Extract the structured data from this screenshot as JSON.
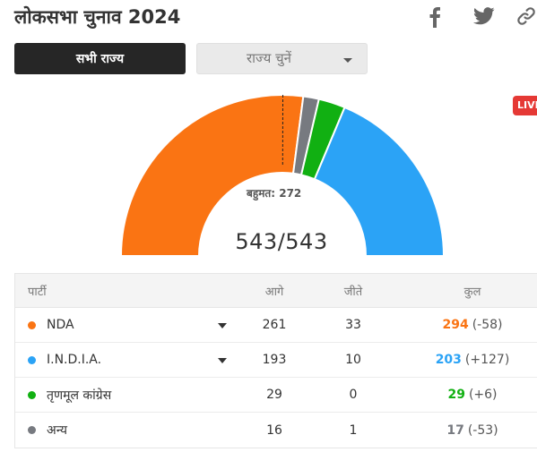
{
  "header": {
    "title": "लोकसभा चुनाव 2024",
    "share_icons": [
      "facebook-icon",
      "twitter-icon",
      "link-icon"
    ]
  },
  "controls": {
    "all_states_label": "सभी राज्य",
    "state_select_placeholder": "राज्य चुनें"
  },
  "live_badge": "LIVE",
  "summary": {
    "majority_label": "बहुमत: 272",
    "seats_declared": "543/543"
  },
  "colors": {
    "nda": "#fa7413",
    "india": "#2ba3f6",
    "tmc": "#11b012",
    "others": "#777a80"
  },
  "chart_data": {
    "type": "semi-donut",
    "total_seats": 543,
    "majority": 272,
    "segments": [
      {
        "name": "NDA",
        "value": 294,
        "color": "#fa7413"
      },
      {
        "name": "अन्य",
        "value": 17,
        "color": "#777a80"
      },
      {
        "name": "तृणमूल कांग्रेस",
        "value": 29,
        "color": "#11b012"
      },
      {
        "name": "I.N.D.I.A.",
        "value": 203,
        "color": "#2ba3f6"
      }
    ]
  },
  "table": {
    "headers": {
      "party": "पार्टी",
      "lead": "आगे",
      "won": "जीते",
      "total": "कुल"
    },
    "rows": [
      {
        "party": "NDA",
        "color": "#fa7413",
        "lead": "261",
        "won": "33",
        "total": "294",
        "change": "(-58)",
        "total_color": "#fa7413",
        "expandable": true
      },
      {
        "party": "I.N.D.I.A.",
        "color": "#2ba3f6",
        "lead": "193",
        "won": "10",
        "total": "203",
        "change": "(+127)",
        "total_color": "#2ba3f6",
        "expandable": true
      },
      {
        "party": "तृणमूल कांग्रेस",
        "color": "#11b012",
        "lead": "29",
        "won": "0",
        "total": "29",
        "change": "(+6)",
        "total_color": "#11b012",
        "expandable": false
      },
      {
        "party": "अन्य",
        "color": "#777a80",
        "lead": "16",
        "won": "1",
        "total": "17",
        "change": "(-53)",
        "total_color": "#777a80",
        "expandable": false
      }
    ]
  }
}
